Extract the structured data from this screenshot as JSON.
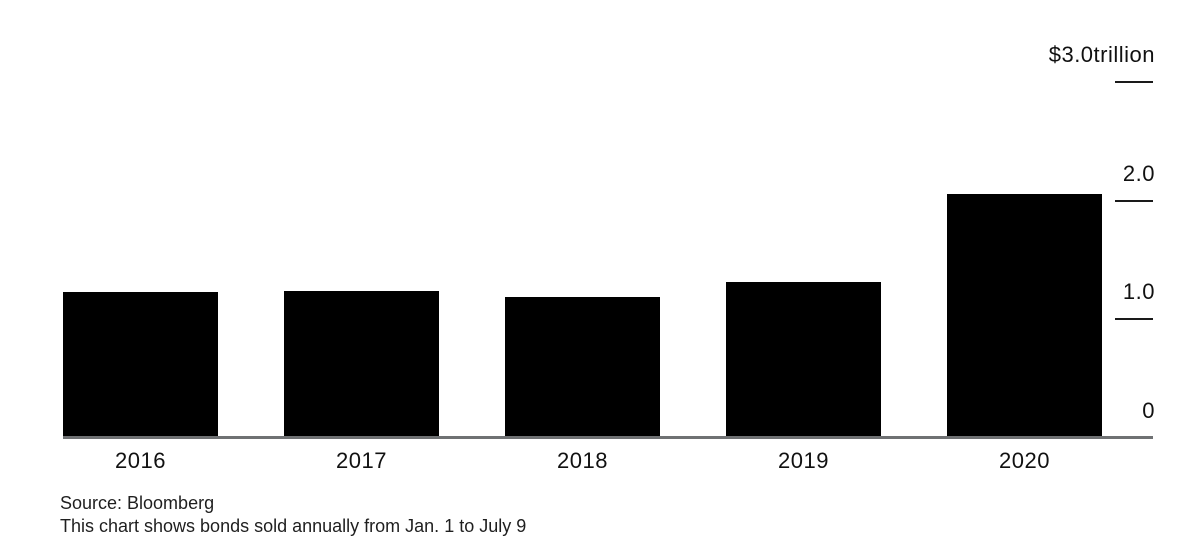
{
  "chart_data": {
    "type": "bar",
    "title": "",
    "categories": [
      "2016",
      "2017",
      "2018",
      "2019",
      "2020"
    ],
    "values": [
      1.22,
      1.23,
      1.18,
      1.31,
      2.05
    ],
    "ylim": [
      0,
      3.0
    ],
    "yticks": [
      {
        "value": 3.0,
        "label": "$3.0trillion",
        "has_tick_mark": true
      },
      {
        "value": 2.0,
        "label": "2.0",
        "has_tick_mark": true
      },
      {
        "value": 1.0,
        "label": "1.0",
        "has_tick_mark": true
      },
      {
        "value": 0.0,
        "label": "0",
        "has_tick_mark": false
      }
    ],
    "grid": false,
    "legend": null,
    "y_axis_side": "right",
    "bar_color": "#000000",
    "axis_line_color": "#6f7173",
    "tick_mark_color": "#1a1a1a",
    "text_color": "#111111"
  },
  "footer": {
    "source": "Source: Bloomberg",
    "note": "This chart shows bonds sold annually from Jan. 1 to July 9"
  }
}
